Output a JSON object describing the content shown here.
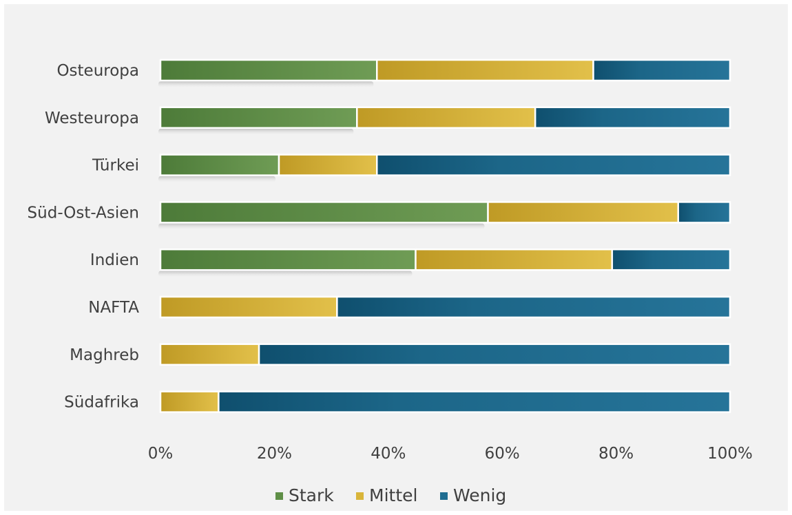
{
  "chart_data": {
    "type": "bar",
    "orientation": "horizontal",
    "stacked": "percent",
    "categories": [
      "Osteuropa",
      "Westeuropa",
      "Türkei",
      "Süd-Ost-Asien",
      "Indien",
      "NAFTA",
      "Maghreb",
      "Südafrika"
    ],
    "series": [
      {
        "name": "Stark",
        "color": "#5f8f47",
        "values": [
          38,
          34.5,
          20.8,
          57.5,
          44.8,
          0,
          0,
          0
        ]
      },
      {
        "name": "Mittel",
        "color": "#d9b53a",
        "values": [
          38,
          31.3,
          17.2,
          33.4,
          34.5,
          31,
          17.3,
          10.2
        ]
      },
      {
        "name": "Wenig",
        "color": "#1f6d91",
        "values": [
          24,
          34.2,
          62,
          9.1,
          20.7,
          69,
          82.7,
          89.8
        ]
      }
    ],
    "xlim": [
      0,
      100
    ],
    "xticks": [
      "0%",
      "20%",
      "40%",
      "60%",
      "80%",
      "100%"
    ],
    "legend": "bottom",
    "grid": false
  }
}
